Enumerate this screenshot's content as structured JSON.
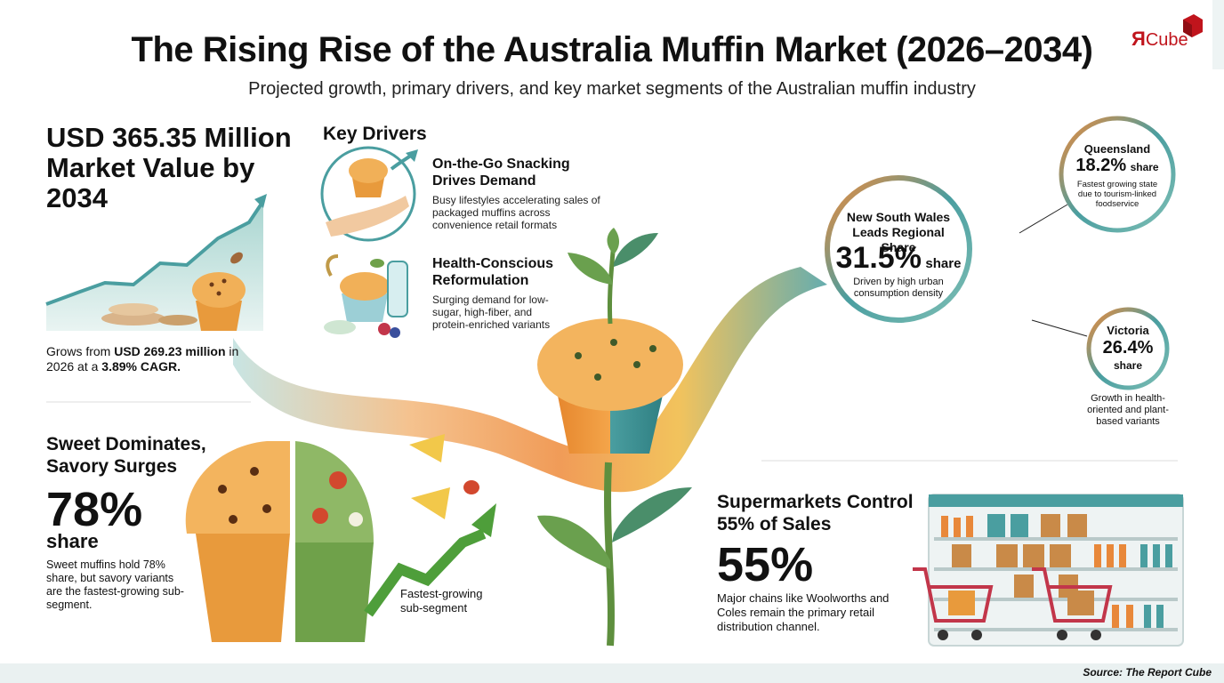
{
  "header": {
    "title": "The Rising Rise of the Australia Muffin Market (2026–2034)",
    "subtitle": "Projected growth, primary drivers, and key market segments of the Australian muffin industry"
  },
  "logo": {
    "mark": "Я",
    "word": "Cube"
  },
  "market_value": {
    "headline": "USD 365.35 Million Market Value by 2034",
    "note_prefix": "Grows from ",
    "note_amount": "USD 269.23 million",
    "note_middle": " in 2026 at a ",
    "note_cagr": "3.89% CAGR."
  },
  "key_drivers": {
    "title": "Key Drivers",
    "items": [
      {
        "title": "On-the-Go Snacking Drives Demand",
        "text": "Busy lifestyles accelerating sales of packaged muffins across convenience retail formats"
      },
      {
        "title": "Health-Conscious Reformulation",
        "text": "Surging demand for low-sugar, high-fiber, and protein-enriched variants"
      }
    ]
  },
  "regions": {
    "nsw": {
      "name": "New South Wales Leads Regional Share",
      "value": "31.5%",
      "unit": "share",
      "note": "Driven by high urban consumption density"
    },
    "qld": {
      "name": "Queensland",
      "value": "18.2%",
      "unit": "share",
      "note": "Fastest growing state due to tourism-linked foodservice"
    },
    "vic": {
      "name": "Victoria",
      "value": "26.4%",
      "unit": "share",
      "note": "Growth in health-oriented and plant-based variants"
    }
  },
  "sweet_savory": {
    "headline": "Sweet Dominates, Savory Surges",
    "value": "78%",
    "unit": "share",
    "note": "Sweet muffins hold 78% share, but savory variants are the fastest-growing sub-segment.",
    "growth_label": "Fastest-growing sub-segment"
  },
  "supermarkets": {
    "headline": "Supermarkets Control 55% of Sales",
    "value": "55%",
    "note": "Major chains like Woolworths and Coles remain the primary retail distribution channel."
  },
  "footer": {
    "source": "Source: The Report Cube"
  },
  "colors": {
    "teal": "#4a9ea0",
    "orange": "#ee8a3a",
    "red_brand": "#c0141c",
    "green_leaf": "#5e8f3e"
  }
}
